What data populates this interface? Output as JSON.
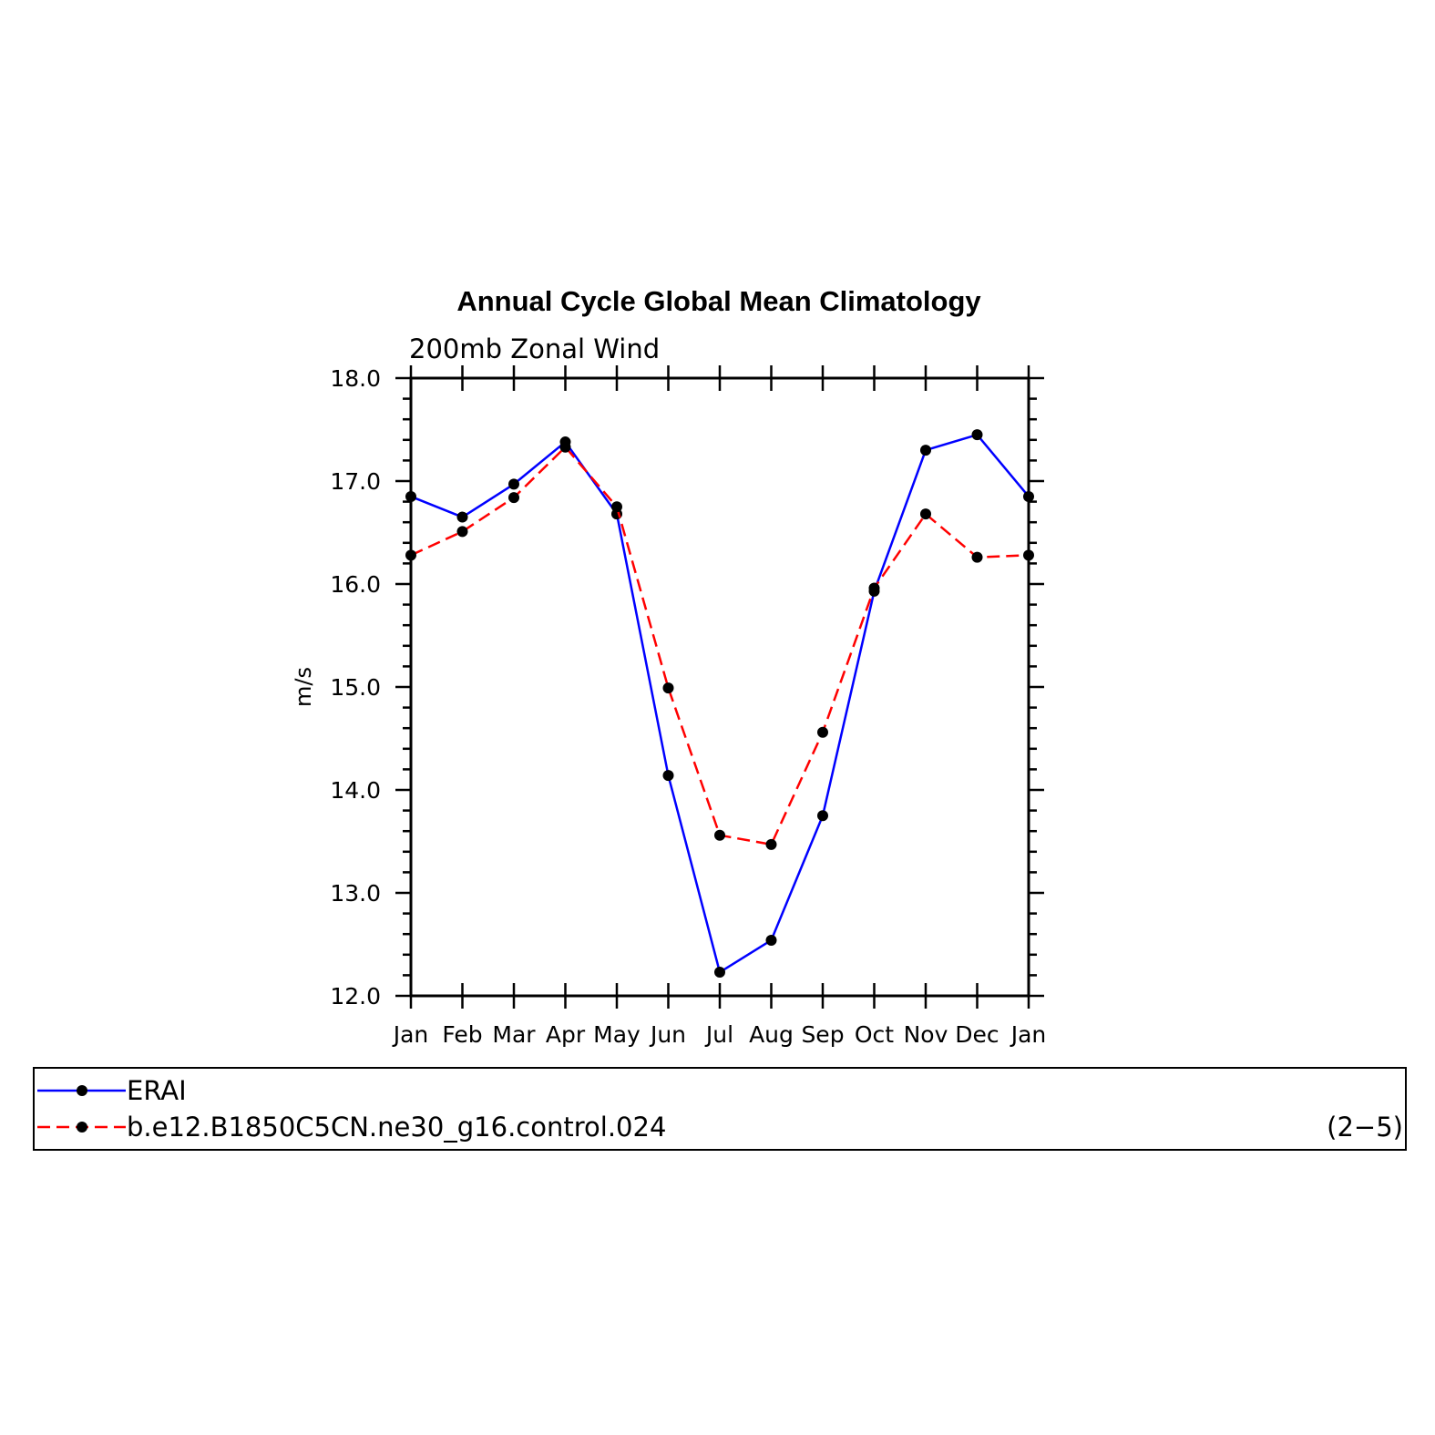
{
  "chart_data": {
    "type": "line",
    "title": "Annual Cycle Global Mean Climatology",
    "subtitle": "200mb Zonal Wind",
    "ylabel": "m/s",
    "xlabel": "",
    "categories": [
      "Jan",
      "Feb",
      "Mar",
      "Apr",
      "May",
      "Jun",
      "Jul",
      "Aug",
      "Sep",
      "Oct",
      "Nov",
      "Dec",
      "Jan"
    ],
    "ylim": [
      12.0,
      18.0
    ],
    "yticks": [
      "12.0",
      "13.0",
      "14.0",
      "15.0",
      "16.0",
      "17.0",
      "18.0"
    ],
    "grid": false,
    "legend_placement": "bottom",
    "series": [
      {
        "name": "ERAI",
        "color": "#0000ff",
        "style": "solid",
        "values": [
          16.85,
          16.65,
          16.97,
          17.38,
          16.68,
          14.14,
          12.23,
          12.54,
          13.75,
          15.93,
          17.3,
          17.45,
          16.85
        ]
      },
      {
        "name": "b.e12.B1850C5CN.ne30_g16.control.024",
        "color": "#ff0000",
        "style": "dashed",
        "values": [
          16.28,
          16.51,
          16.84,
          17.33,
          16.75,
          14.99,
          13.56,
          13.47,
          14.56,
          15.96,
          16.68,
          16.26,
          16.28
        ]
      }
    ]
  },
  "panel_label": "(2−5)"
}
